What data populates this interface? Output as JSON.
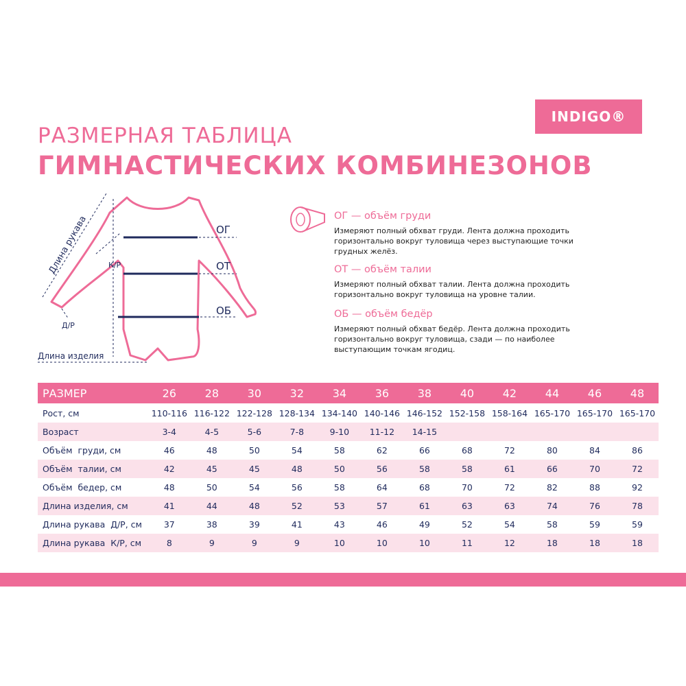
{
  "logo": "INDIGO®",
  "title": {
    "line1": "РАЗМЕРНАЯ ТАБЛИЦА",
    "line2": "ГИМНАСТИЧЕСКИХ КОМБИНЕЗОНОВ"
  },
  "diagram": {
    "sleeve_length": "Длина рукава",
    "short_sleeve": "К/Р",
    "long_sleeve": "Д/Р",
    "item_length": "Длина изделия",
    "chest": "ОГ",
    "waist": "ОТ",
    "hips": "ОБ"
  },
  "definitions": [
    {
      "heading": "ОГ — объём груди",
      "text": "Измеряют полный обхват груди. Лента должна проходить горизонтально вокруг туловища через выступающие точки грудных желёз."
    },
    {
      "heading": "ОТ — объём талии",
      "text": "Измеряют полный обхват талии. Лента должна проходить горизонтально вокруг туловища на уровне талии."
    },
    {
      "heading": "ОБ — объём бедёр",
      "text": "Измеряют полный обхват бедёр. Лента должна проходить горизонтально вокруг туловища, сзади — по наиболее выступающим точкам ягодиц."
    }
  ],
  "table": {
    "header": [
      "РАЗМЕР",
      "26",
      "28",
      "30",
      "32",
      "34",
      "36",
      "38",
      "40",
      "42",
      "44",
      "46",
      "48"
    ],
    "rows": [
      [
        "Рост, см",
        "110-116",
        "116-122",
        "122-128",
        "128-134",
        "134-140",
        "140-146",
        "146-152",
        "152-158",
        "158-164",
        "165-170",
        "165-170",
        "165-170"
      ],
      [
        "Возраст",
        "3-4",
        "4-5",
        "5-6",
        "7-8",
        "9-10",
        "11-12",
        "14-15"
      ],
      [
        "Объём  груди, см",
        "46",
        "48",
        "50",
        "54",
        "58",
        "62",
        "66",
        "68",
        "72",
        "80",
        "84",
        "86"
      ],
      [
        "Объём  талии, см",
        "42",
        "45",
        "45",
        "48",
        "50",
        "56",
        "58",
        "58",
        "61",
        "66",
        "70",
        "72"
      ],
      [
        "Объём  бедер, см",
        "48",
        "50",
        "54",
        "56",
        "58",
        "64",
        "68",
        "70",
        "72",
        "82",
        "88",
        "92"
      ],
      [
        "Длина изделия, см",
        "41",
        "44",
        "48",
        "52",
        "53",
        "57",
        "61",
        "63",
        "63",
        "74",
        "76",
        "78"
      ],
      [
        "Длина рукава  Д/Р, см",
        "37",
        "38",
        "39",
        "41",
        "43",
        "46",
        "49",
        "52",
        "54",
        "58",
        "59",
        "59"
      ],
      [
        "Длина рукава  К/Р, см",
        "8",
        "9",
        "9",
        "9",
        "10",
        "10",
        "10",
        "11",
        "12",
        "18",
        "18",
        "18"
      ]
    ]
  }
}
